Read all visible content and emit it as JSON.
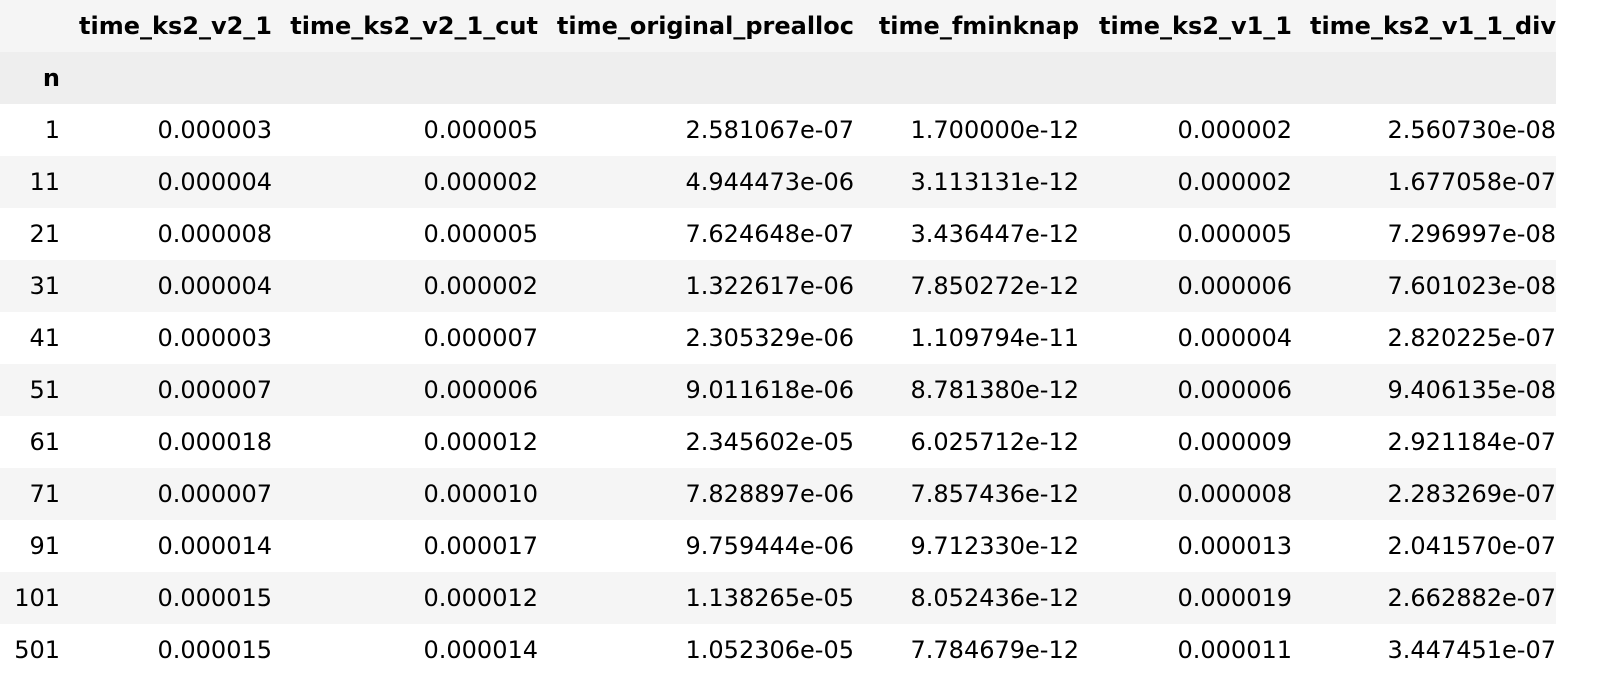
{
  "table": {
    "index_name": "n",
    "columns": [
      "time_ks2_v2_1",
      "time_ks2_v2_1_cut",
      "time_original_prealloc",
      "time_fminknap",
      "time_ks2_v1_1",
      "time_ks2_v1_1_div"
    ],
    "rows": [
      {
        "n": "1",
        "values": [
          "0.000003",
          "0.000005",
          "2.581067e-07",
          "1.700000e-12",
          "0.000002",
          "2.560730e-08"
        ]
      },
      {
        "n": "11",
        "values": [
          "0.000004",
          "0.000002",
          "4.944473e-06",
          "3.113131e-12",
          "0.000002",
          "1.677058e-07"
        ]
      },
      {
        "n": "21",
        "values": [
          "0.000008",
          "0.000005",
          "7.624648e-07",
          "3.436447e-12",
          "0.000005",
          "7.296997e-08"
        ]
      },
      {
        "n": "31",
        "values": [
          "0.000004",
          "0.000002",
          "1.322617e-06",
          "7.850272e-12",
          "0.000006",
          "7.601023e-08"
        ]
      },
      {
        "n": "41",
        "values": [
          "0.000003",
          "0.000007",
          "2.305329e-06",
          "1.109794e-11",
          "0.000004",
          "2.820225e-07"
        ]
      },
      {
        "n": "51",
        "values": [
          "0.000007",
          "0.000006",
          "9.011618e-06",
          "8.781380e-12",
          "0.000006",
          "9.406135e-08"
        ]
      },
      {
        "n": "61",
        "values": [
          "0.000018",
          "0.000012",
          "2.345602e-05",
          "6.025712e-12",
          "0.000009",
          "2.921184e-07"
        ]
      },
      {
        "n": "71",
        "values": [
          "0.000007",
          "0.000010",
          "7.828897e-06",
          "7.857436e-12",
          "0.000008",
          "2.283269e-07"
        ]
      },
      {
        "n": "91",
        "values": [
          "0.000014",
          "0.000017",
          "9.759444e-06",
          "9.712330e-12",
          "0.000013",
          "2.041570e-07"
        ]
      },
      {
        "n": "101",
        "values": [
          "0.000015",
          "0.000012",
          "1.138265e-05",
          "8.052436e-12",
          "0.000019",
          "2.662882e-07"
        ]
      },
      {
        "n": "501",
        "values": [
          "0.000015",
          "0.000014",
          "1.052306e-05",
          "7.784679e-12",
          "0.000011",
          "3.447451e-07"
        ]
      }
    ]
  },
  "colors": {
    "header_bg": "#f5f5f5",
    "index_header_bg": "#eeeeee",
    "stripe_bg": "#f5f5f5",
    "row_bg": "#ffffff",
    "text": "#000000"
  }
}
